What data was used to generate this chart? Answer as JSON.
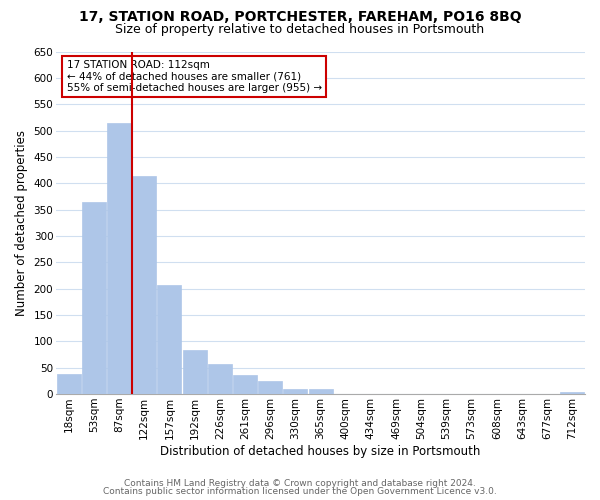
{
  "title_line1": "17, STATION ROAD, PORTCHESTER, FAREHAM, PO16 8BQ",
  "title_line2": "Size of property relative to detached houses in Portsmouth",
  "xlabel": "Distribution of detached houses by size in Portsmouth",
  "ylabel": "Number of detached properties",
  "bar_labels": [
    "18sqm",
    "53sqm",
    "87sqm",
    "122sqm",
    "157sqm",
    "192sqm",
    "226sqm",
    "261sqm",
    "296sqm",
    "330sqm",
    "365sqm",
    "400sqm",
    "434sqm",
    "469sqm",
    "504sqm",
    "539sqm",
    "573sqm",
    "608sqm",
    "643sqm",
    "677sqm",
    "712sqm"
  ],
  "bar_values": [
    38,
    365,
    515,
    413,
    207,
    84,
    57,
    37,
    25,
    10,
    10,
    0,
    0,
    0,
    0,
    0,
    0,
    0,
    0,
    0,
    4
  ],
  "bar_color": "#aec6e8",
  "bar_edge_color": "#aec6e8",
  "vline_color": "#cc0000",
  "annotation_title": "17 STATION ROAD: 112sqm",
  "annotation_line1": "← 44% of detached houses are smaller (761)",
  "annotation_line2": "55% of semi-detached houses are larger (955) →",
  "annotation_box_color": "#ffffff",
  "annotation_box_edge_color": "#cc0000",
  "ylim": [
    0,
    650
  ],
  "yticks": [
    0,
    50,
    100,
    150,
    200,
    250,
    300,
    350,
    400,
    450,
    500,
    550,
    600,
    650
  ],
  "footer_line1": "Contains HM Land Registry data © Crown copyright and database right 2024.",
  "footer_line2": "Contains public sector information licensed under the Open Government Licence v3.0.",
  "bg_color": "#ffffff",
  "grid_color": "#d0dff0",
  "title_fontsize": 10,
  "subtitle_fontsize": 9,
  "axis_label_fontsize": 8.5,
  "tick_fontsize": 7.5,
  "footer_fontsize": 6.5
}
